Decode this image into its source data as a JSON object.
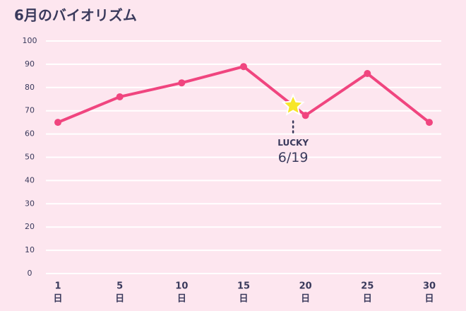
{
  "chart_data": {
    "type": "line",
    "title": "6月のバイオリズム",
    "categories": [
      "1",
      "5",
      "10",
      "15",
      "20",
      "25",
      "30"
    ],
    "x_unit": "日",
    "series": [
      {
        "name": "バイオリズム",
        "color": "#f0457f",
        "values": [
          65,
          76,
          82,
          89,
          68,
          86,
          65
        ]
      }
    ],
    "ylim": [
      0,
      100
    ],
    "yticks": [
      0,
      10,
      20,
      30,
      40,
      50,
      60,
      70,
      80,
      90,
      100
    ],
    "grid": true,
    "annotation": {
      "label": "LUCKY",
      "date": "6/19"
    }
  }
}
